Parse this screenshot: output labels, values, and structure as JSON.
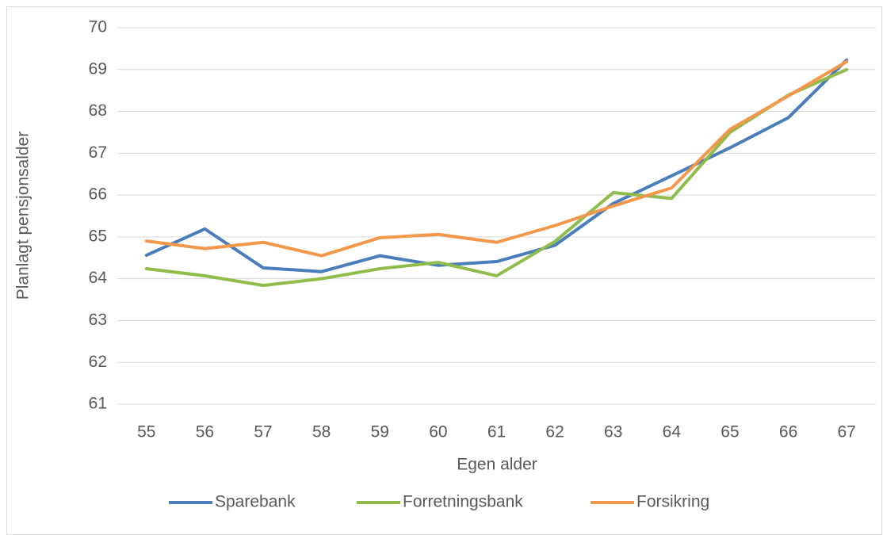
{
  "chart_data": {
    "type": "line",
    "x_label": "Egen alder",
    "y_label": "Planlagt pensjonsalder",
    "categories": [
      "55",
      "56",
      "57",
      "58",
      "59",
      "60",
      "61",
      "62",
      "63",
      "64",
      "65",
      "66",
      "67"
    ],
    "series": [
      {
        "name": "Sparebank",
        "color": "#4a7ebb",
        "values": [
          64.56,
          65.19,
          64.26,
          64.17,
          64.55,
          64.32,
          64.41,
          64.8,
          65.8,
          66.46,
          67.13,
          67.85,
          69.23
        ]
      },
      {
        "name": "Forretningsbank",
        "color": "#8fbc4a",
        "values": [
          64.24,
          64.07,
          63.84,
          64.0,
          64.24,
          64.39,
          64.07,
          64.89,
          66.06,
          65.92,
          67.5,
          68.39,
          69.0
        ]
      },
      {
        "name": "Forsikring",
        "color": "#f3974a",
        "values": [
          64.9,
          64.72,
          64.87,
          64.55,
          64.98,
          65.06,
          64.87,
          65.27,
          65.74,
          66.17,
          67.57,
          68.37,
          69.19
        ]
      }
    ],
    "ylim": [
      61,
      70
    ],
    "yticks": [
      61,
      62,
      63,
      64,
      65,
      66,
      67,
      68,
      69,
      70
    ],
    "grid": true,
    "legend": "bottom"
  }
}
